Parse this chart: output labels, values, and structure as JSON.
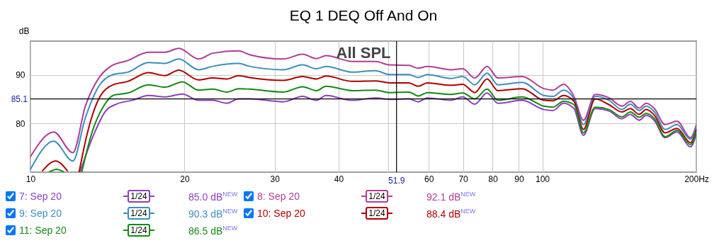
{
  "chart_data": {
    "type": "line",
    "title": "EQ 1 DEQ Off And On",
    "ylabel": "dB",
    "xlim": [
      10,
      200
    ],
    "xticks": [
      10,
      20,
      30,
      40,
      {
        "value": 50,
        "label": null
      },
      60,
      70,
      80,
      90,
      100,
      {
        "value": 200,
        "label": "200Hz"
      }
    ],
    "ylim": [
      70,
      97
    ],
    "yticks": [
      80,
      90
    ],
    "log": "x",
    "grid": true,
    "legend": "bottom",
    "series": [
      {
        "name": "7: Sep 20",
        "color": "#8e3fc0",
        "x": [
          12.5,
          13.3,
          14.05,
          14.8,
          15.8,
          17.0,
          18.3,
          19.8,
          21.3,
          22.7,
          24.2,
          25.5,
          26.8,
          31.2,
          34.0,
          36.2,
          37.8,
          42.5,
          47.2,
          50.3,
          54.9,
          57.2,
          59.6,
          66.3,
          69.9,
          73.8,
          78.0,
          81.9,
          91.3,
          100.7,
          104.9,
          110,
          115.3,
          120.3,
          126.8,
          135,
          143,
          148.6,
          154.6,
          159.6,
          165.6,
          173.7,
          183.3,
          194.7,
          200
        ],
        "values": [
          70.1,
          77.8,
          82.7,
          84.1,
          84.8,
          85.8,
          85.5,
          86.1,
          84.8,
          84.8,
          84.2,
          85.1,
          85.1,
          84.5,
          85.6,
          84.8,
          85.8,
          84.8,
          85.3,
          85.0,
          85.1,
          84.5,
          85.3,
          84.8,
          85.5,
          84.0,
          86.3,
          84.2,
          84.8,
          82.9,
          82.7,
          84.2,
          83.1,
          77.6,
          83.1,
          82.6,
          81.0,
          81.9,
          80.7,
          81.7,
          80.6,
          77.1,
          78.3,
          75.2,
          77.9
        ]
      },
      {
        "name": "8: Sep 20",
        "color": "#b23c96",
        "x": [
          10,
          11.1,
          12.1,
          12.8,
          13.6,
          14.35,
          15.5,
          17.0,
          18.3,
          19.5,
          21.3,
          22.7,
          25.5,
          26.8,
          31.2,
          34.0,
          36.2,
          37.8,
          42.5,
          47.2,
          50.3,
          54.9,
          57.2,
          59.6,
          66.3,
          69.9,
          73.8,
          78.0,
          81.9,
          91.3,
          100.7,
          104.9,
          110,
          115.3,
          120.3,
          126.8,
          135,
          143,
          148.6,
          154.6,
          159.6,
          165.6,
          173.7,
          183.3,
          194.7,
          200
        ],
        "values": [
          73.2,
          78.3,
          74.0,
          83.6,
          89.4,
          91.8,
          93.0,
          94.7,
          94.7,
          95.5,
          93.3,
          94.5,
          95.0,
          94.2,
          93.3,
          94.3,
          93.4,
          94.0,
          92.8,
          92.8,
          92.1,
          92.0,
          91.4,
          91.8,
          91.1,
          91.3,
          89.4,
          91.8,
          89.4,
          89.7,
          87.2,
          86.9,
          88.1,
          85.6,
          80.7,
          86.0,
          85.3,
          83.6,
          84.6,
          83.2,
          84.2,
          83.1,
          79.8,
          80.5,
          77.1,
          79.8
        ]
      },
      {
        "name": "9: Sep 20",
        "color": "#3b8fbd",
        "x": [
          10,
          11.1,
          12.1,
          12.8,
          13.6,
          14.5,
          15.5,
          17.0,
          18.3,
          19.5,
          21.3,
          22.7,
          25.5,
          26.8,
          31.2,
          34.0,
          36.2,
          37.8,
          42.5,
          47.2,
          50.3,
          54.9,
          57.2,
          59.6,
          66.3,
          69.9,
          73.8,
          78.0,
          81.9,
          91.3,
          100.7,
          104.9,
          110,
          115.3,
          120.3,
          126.8,
          135,
          143,
          148.6,
          154.6,
          159.6,
          165.6,
          173.7,
          183.3,
          194.7,
          200
        ],
        "values": [
          70.6,
          76.4,
          72.3,
          81.2,
          87.7,
          90.1,
          90.6,
          92.6,
          92.4,
          93.3,
          91.1,
          91.8,
          92.4,
          91.8,
          91.1,
          92.1,
          91.3,
          91.8,
          90.6,
          90.9,
          90.1,
          90.1,
          89.5,
          90.1,
          89.3,
          89.7,
          88.0,
          90.4,
          88.0,
          88.5,
          85.8,
          85.6,
          86.9,
          85.1,
          79.8,
          85.6,
          84.8,
          82.9,
          84.0,
          82.7,
          83.6,
          82.4,
          78.8,
          79.8,
          76.8,
          79.3
        ]
      },
      {
        "name": "10: Sep 20",
        "color": "#b00000",
        "x": [
          10.56,
          11.2,
          11.8,
          12.1,
          12.45,
          12.9,
          13.6,
          14.5,
          15.5,
          17.0,
          18.3,
          19.5,
          21.3,
          22.7,
          24.2,
          25.5,
          26.8,
          31.2,
          34.0,
          36.2,
          37.8,
          42.5,
          47.2,
          50.3,
          54.9,
          57.2,
          59.6,
          66.3,
          69.9,
          73.8,
          78.0,
          81.9,
          91.3,
          100.7,
          104.9,
          110,
          115.3,
          120.3,
          126.8,
          135,
          143,
          148.6,
          154.6,
          159.6,
          165.6,
          173.7,
          183.3,
          194.7,
          200
        ],
        "values": [
          70.3,
          72.3,
          70.3,
          null,
          70.1,
          77.8,
          85.1,
          88.0,
          88.7,
          90.5,
          89.9,
          91.0,
          89.0,
          89.4,
          89.2,
          89.9,
          89.5,
          88.9,
          89.7,
          89.2,
          89.8,
          88.7,
          88.8,
          88.4,
          88.4,
          87.7,
          88.4,
          87.9,
          88.1,
          86.4,
          89.2,
          86.8,
          87.2,
          84.8,
          84.7,
          85.8,
          84.6,
          78.8,
          85.1,
          83.9,
          82.4,
          83.1,
          81.9,
          82.9,
          81.7,
          78.1,
          79.0,
          76.1,
          78.8
        ]
      },
      {
        "name": "11: Sep 20",
        "color": "#138a13",
        "x": [
          10.9,
          11.25,
          11.6,
          12.1,
          12.6,
          13.2,
          13.9,
          14.5,
          15.5,
          17.0,
          18.3,
          19.8,
          21.3,
          22.7,
          24.2,
          25.5,
          26.8,
          31.2,
          34.0,
          36.2,
          37.8,
          42.5,
          47.2,
          50.3,
          54.9,
          57.2,
          59.6,
          66.3,
          69.9,
          73.8,
          78.0,
          81.9,
          91.3,
          100.7,
          104.9,
          110,
          115.3,
          120.3,
          126.8,
          135,
          143,
          148.6,
          154.6,
          159.6,
          165.6,
          173.7,
          183.3,
          194.7,
          200
        ],
        "values": [
          70.1,
          70.6,
          70.1,
          null,
          70.1,
          78.3,
          83.6,
          85.8,
          86.3,
          88.0,
          87.5,
          88.6,
          86.9,
          87.1,
          86.5,
          87.2,
          87.1,
          86.5,
          87.6,
          86.8,
          87.7,
          86.8,
          86.9,
          86.4,
          86.5,
          85.7,
          86.4,
          86.0,
          86.3,
          85.1,
          87.1,
          84.8,
          85.5,
          83.6,
          83.4,
          84.6,
          83.9,
          78.1,
          83.4,
          82.9,
          81.4,
          82.4,
          81.3,
          82.1,
          81.0,
          77.3,
          78.6,
          75.7,
          78.3
        ]
      }
    ],
    "ref_lines": [
      {
        "axis": "x",
        "value": 51.9,
        "label": "51.9",
        "color": "#000000"
      },
      {
        "axis": "y",
        "value": 85.1,
        "label": "85.1",
        "color": "#000000"
      }
    ],
    "annotations": [
      "All SPL",
      "1/24",
      "85.0 dB$^{NEW}$",
      "1/24",
      "92.1 dB$^{NEW}$",
      "1/24",
      "90.3 dB$^{NEW}$",
      "1/24",
      "88.4 dB$^{NEW}$",
      "1/24",
      "86.5 dB$^{NEW}$"
    ]
  }
}
